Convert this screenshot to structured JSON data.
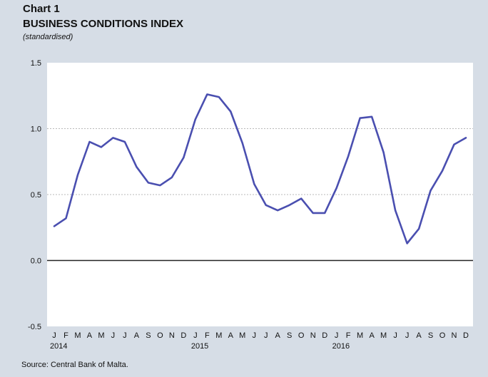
{
  "header": {
    "chart_label": "Chart 1",
    "title": "BUSINESS CONDITIONS INDEX",
    "subtitle": "(standardised)"
  },
  "source": "Source: Central Bank of Malta.",
  "colors": {
    "line": "#4a4fb0",
    "plot_bg": "#ffffff",
    "page_bg": "#d6dde6",
    "grid": "#b8b8b8",
    "zero_line": "#222222"
  },
  "chart_data": {
    "type": "line",
    "title": "BUSINESS CONDITIONS INDEX",
    "subtitle": "(standardised)",
    "xlabel": "",
    "ylabel": "",
    "ylim": [
      -0.5,
      1.5
    ],
    "yticks": [
      "1.5",
      "1.0",
      "0.5",
      "0.0",
      "-0.5"
    ],
    "grid": true,
    "month_labels": [
      "J",
      "F",
      "M",
      "A",
      "M",
      "J",
      "J",
      "A",
      "S",
      "O",
      "N",
      "D",
      "J",
      "F",
      "M",
      "A",
      "M",
      "J",
      "J",
      "A",
      "S",
      "O",
      "N",
      "D",
      "J",
      "F",
      "M",
      "A",
      "M",
      "J",
      "J",
      "A",
      "S",
      "O",
      "N",
      "D"
    ],
    "year_labels": [
      {
        "index": 0,
        "label": "2014"
      },
      {
        "index": 12,
        "label": "2015"
      },
      {
        "index": 24,
        "label": "2016"
      }
    ],
    "series": [
      {
        "values": [
          0.26,
          0.32,
          0.65,
          0.9,
          0.86,
          0.93,
          0.9,
          0.71,
          0.59,
          0.57,
          0.63,
          0.78,
          1.07,
          1.26,
          1.24,
          1.13,
          0.89,
          0.58,
          0.42,
          0.38,
          0.42,
          0.47,
          0.36,
          0.36,
          0.55,
          0.79,
          1.08,
          1.09,
          0.82,
          0.38,
          0.13,
          0.24,
          0.53,
          0.68,
          0.88,
          0.93
        ]
      }
    ]
  }
}
